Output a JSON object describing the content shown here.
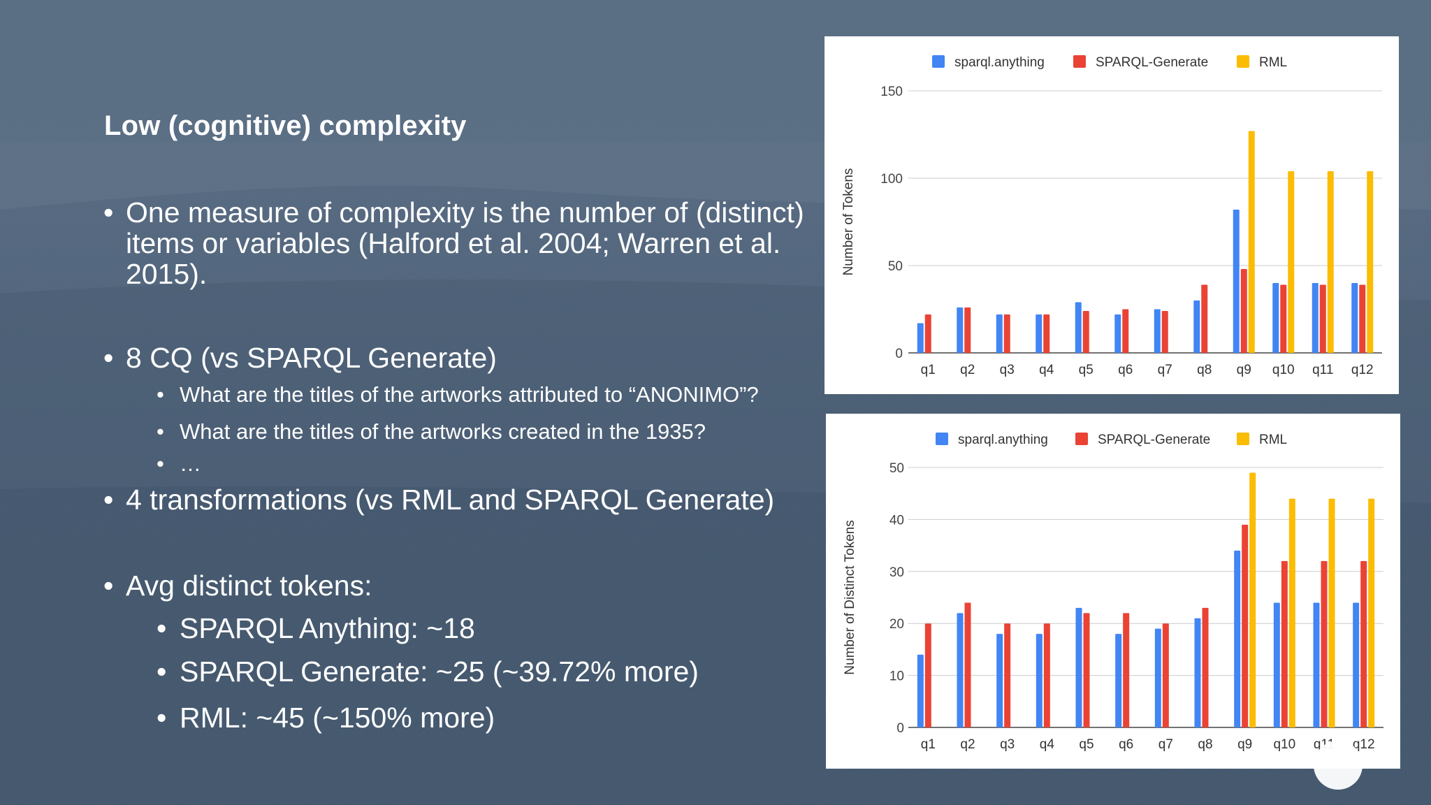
{
  "slide": {
    "title": "Low (cognitive) complexity",
    "bullets": [
      {
        "level": 1,
        "text": "One measure of complexity is the number of (distinct) items or variables (Halford et al. 2004; Warren et al. 2015)."
      },
      {
        "level": 1,
        "text": "8 CQ (vs SPARQL Generate)"
      },
      {
        "level": 2,
        "text": "What are the titles of the artworks attributed to “ANONIMO”?"
      },
      {
        "level": 2,
        "text": "What are the titles of the artworks created in the 1935?"
      },
      {
        "level": 2,
        "text": "…"
      },
      {
        "level": 1,
        "text": "4 transformations (vs RML and SPARQL Generate)"
      },
      {
        "level": 1,
        "text": "Avg distinct tokens:"
      },
      {
        "level": 2,
        "text": "SPARQL Anything: ~18"
      },
      {
        "level": 2,
        "text": "SPARQL Generate: ~25 (~39.72% more)"
      },
      {
        "level": 2,
        "text": "RML: ~45 (~150% more)"
      }
    ],
    "bullet_glyph": "•"
  },
  "chart_data": [
    {
      "type": "bar",
      "ylabel": "Number of Tokens",
      "xlabel": "",
      "categories": [
        "q1",
        "q2",
        "q3",
        "q4",
        "q5",
        "q6",
        "q7",
        "q8",
        "q9",
        "q10",
        "q11",
        "q12"
      ],
      "ylim": [
        0,
        150
      ],
      "yticks": [
        0,
        50,
        100,
        150
      ],
      "grid": true,
      "legend": "top",
      "series": [
        {
          "name": "sparql.anything",
          "color": "#4285f4",
          "values": [
            17,
            26,
            22,
            22,
            29,
            22,
            25,
            30,
            82,
            40,
            40,
            40
          ]
        },
        {
          "name": "SPARQL-Generate",
          "color": "#ea4335",
          "values": [
            22,
            26,
            22,
            22,
            24,
            25,
            24,
            39,
            48,
            39,
            39,
            39
          ]
        },
        {
          "name": "RML",
          "color": "#fbbc04",
          "values": [
            null,
            null,
            null,
            null,
            null,
            null,
            null,
            null,
            127,
            104,
            104,
            104
          ]
        }
      ]
    },
    {
      "type": "bar",
      "ylabel": "Number of Distinct Tokens",
      "xlabel": "",
      "categories": [
        "q1",
        "q2",
        "q3",
        "q4",
        "q5",
        "q6",
        "q7",
        "q8",
        "q9",
        "q10",
        "q11",
        "q12"
      ],
      "ylim": [
        0,
        50
      ],
      "yticks": [
        0,
        10,
        20,
        30,
        40,
        50
      ],
      "grid": true,
      "legend": "top",
      "series": [
        {
          "name": "sparql.anything",
          "color": "#4285f4",
          "values": [
            14,
            22,
            18,
            18,
            23,
            18,
            19,
            21,
            34,
            24,
            24,
            24
          ]
        },
        {
          "name": "SPARQL-Generate",
          "color": "#ea4335",
          "values": [
            20,
            24,
            20,
            20,
            22,
            22,
            20,
            23,
            39,
            32,
            32,
            32
          ]
        },
        {
          "name": "RML",
          "color": "#fbbc04",
          "values": [
            null,
            null,
            null,
            null,
            null,
            null,
            null,
            null,
            49,
            44,
            44,
            44
          ]
        }
      ]
    }
  ]
}
